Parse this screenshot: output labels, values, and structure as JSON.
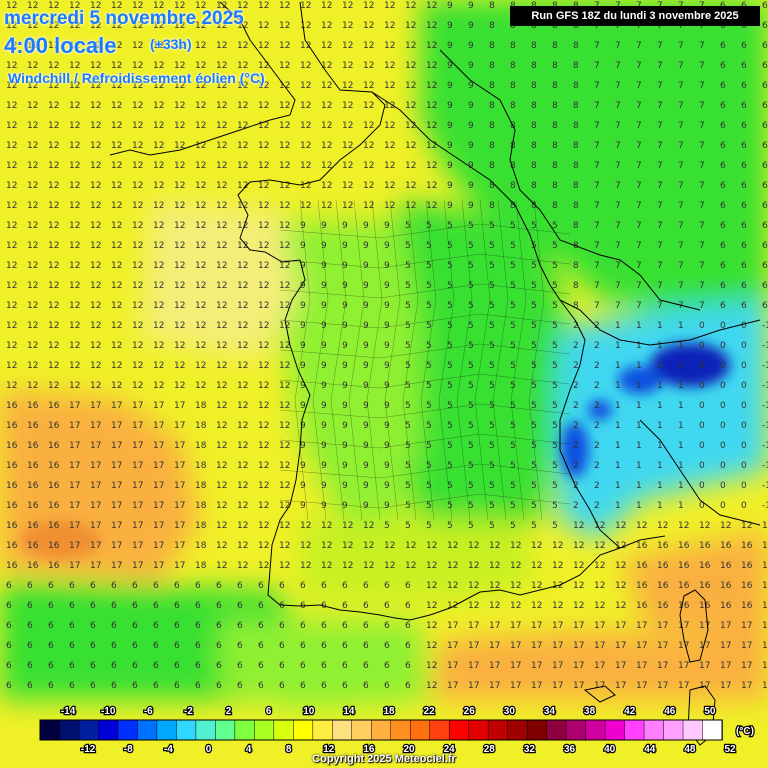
{
  "header": {
    "date_line": "mercredi 5 novembre 2025",
    "time_line": "4:00 locale",
    "offset": "(+33h)",
    "variable": "Windchill / Refroidissement éolien (°C)"
  },
  "run_label": "Run GFS 18Z du lundi 3 novembre 2025",
  "copyright": "Copyright 2025 Meteociel.fr",
  "legend": {
    "unit": "(°C)",
    "top_labels": [
      "-14",
      "-10",
      "-6",
      "-2",
      "2",
      "6",
      "10",
      "14",
      "18",
      "22",
      "26",
      "30",
      "34",
      "38",
      "42",
      "46",
      "50"
    ],
    "bottom_labels": [
      "-12",
      "-8",
      "-4",
      "0",
      "4",
      "8",
      "12",
      "16",
      "20",
      "24",
      "28",
      "32",
      "36",
      "40",
      "44",
      "48",
      "52"
    ],
    "colors": [
      "#000040",
      "#001070",
      "#0020a0",
      "#0000d8",
      "#0030ff",
      "#0070ff",
      "#00a8ff",
      "#30d8ff",
      "#50f0d0",
      "#60ff90",
      "#80ff40",
      "#a8ff20",
      "#d8ff10",
      "#ffff00",
      "#ffee40",
      "#ffe080",
      "#ffd060",
      "#ffb040",
      "#ff9020",
      "#ff7010",
      "#ff4010",
      "#ff0000",
      "#e00000",
      "#c00000",
      "#a00000",
      "#800000",
      "#900040",
      "#b00070",
      "#d000a0",
      "#f000d0",
      "#ff40ff",
      "#ff80ff",
      "#ffa0ff",
      "#ffc8ff",
      "#ffffff"
    ]
  },
  "palette": {
    "green": "#38e030",
    "light_green": "#90f030",
    "yellow_green": "#c8f020",
    "yellow": "#f0f028",
    "pale_yellow": "#f4ee78",
    "orange": "#fab040",
    "dark_orange": "#f09030",
    "cyan": "#40d8f0",
    "blue": "#1050e0",
    "dark_blue": "#0820b8"
  }
}
